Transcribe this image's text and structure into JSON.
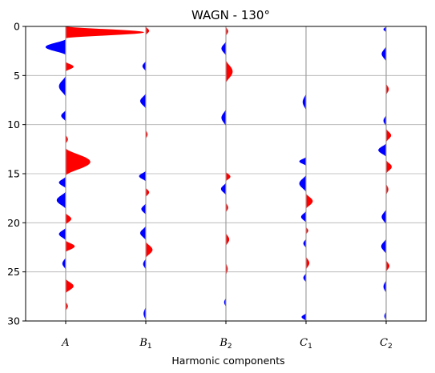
{
  "chart_data": {
    "type": "area",
    "title": "WAGN - 130°",
    "xlabel": "Harmonic components",
    "ylabel": "",
    "categories": [
      {
        "main": "A",
        "sub": ""
      },
      {
        "main": "B",
        "sub": "1"
      },
      {
        "main": "B",
        "sub": "2"
      },
      {
        "main": "C",
        "sub": "1"
      },
      {
        "main": "C",
        "sub": "2"
      }
    ],
    "ylim": [
      30,
      0
    ],
    "yticks": [
      "0",
      "5",
      "10",
      "15",
      "20",
      "25",
      "30"
    ],
    "grid": "horizontal",
    "colors": {
      "positive": "#ff0000",
      "negative": "#0000ff",
      "trace": "#a0a0a0",
      "grid": "#b0b0b0"
    },
    "series": [
      {
        "lobes": [
          [
            0,
            1.2,
            3.5
          ],
          [
            1.3,
            2.9,
            -0.9
          ],
          [
            3.6,
            4.6,
            0.35
          ],
          [
            5.0,
            7.2,
            -0.3
          ],
          [
            8.5,
            9.7,
            -0.2
          ],
          [
            11.0,
            12.0,
            0.1
          ],
          [
            12.4,
            15.2,
            1.1
          ],
          [
            15.3,
            16.5,
            -0.3
          ],
          [
            16.8,
            18.6,
            -0.4
          ],
          [
            19.0,
            20.2,
            0.25
          ],
          [
            20.5,
            21.8,
            -0.3
          ],
          [
            21.8,
            23.0,
            0.4
          ],
          [
            23.5,
            24.8,
            -0.15
          ],
          [
            25.7,
            27.2,
            0.35
          ],
          [
            28.0,
            29.0,
            0.1
          ]
        ]
      },
      {
        "lobes": [
          [
            0,
            0.9,
            0.15
          ],
          [
            3.5,
            4.6,
            -0.15
          ],
          [
            6.8,
            8.4,
            -0.25
          ],
          [
            10.5,
            11.5,
            0.08
          ],
          [
            14.7,
            15.8,
            -0.3
          ],
          [
            16.4,
            17.4,
            0.15
          ],
          [
            18.0,
            19.2,
            -0.2
          ],
          [
            20.3,
            21.8,
            -0.25
          ],
          [
            21.9,
            23.6,
            0.3
          ],
          [
            23.6,
            24.8,
            -0.12
          ],
          [
            28.5,
            30.0,
            -0.1
          ]
        ]
      },
      {
        "lobes": [
          [
            0,
            1.0,
            0.1
          ],
          [
            1.5,
            3.0,
            -0.2
          ],
          [
            3.4,
            5.8,
            0.3
          ],
          [
            8.4,
            10.2,
            -0.2
          ],
          [
            14.8,
            15.8,
            0.2
          ],
          [
            15.9,
            17.2,
            -0.22
          ],
          [
            17.9,
            19.0,
            0.1
          ],
          [
            21.0,
            22.4,
            0.15
          ],
          [
            24.0,
            25.4,
            0.08
          ],
          [
            27.6,
            28.6,
            -0.08
          ]
        ]
      },
      {
        "lobes": [
          [
            6.8,
            8.6,
            -0.15
          ],
          [
            13.3,
            14.2,
            -0.3
          ],
          [
            15.1,
            16.9,
            -0.3
          ],
          [
            17.0,
            18.6,
            0.3
          ],
          [
            18.8,
            20.0,
            -0.22
          ],
          [
            20.4,
            21.2,
            0.1
          ],
          [
            21.6,
            22.6,
            -0.12
          ],
          [
            23.4,
            24.8,
            0.15
          ],
          [
            25.1,
            26.1,
            -0.12
          ],
          [
            29.2,
            30.0,
            -0.2
          ]
        ]
      },
      {
        "lobes": [
          [
            0,
            0.6,
            -0.12
          ],
          [
            2.0,
            3.6,
            -0.2
          ],
          [
            5.8,
            7.0,
            0.12
          ],
          [
            9.0,
            10.2,
            -0.12
          ],
          [
            10.4,
            11.8,
            0.22
          ],
          [
            11.9,
            13.3,
            -0.35
          ],
          [
            13.6,
            15.0,
            0.25
          ],
          [
            16.0,
            17.2,
            0.1
          ],
          [
            18.6,
            20.2,
            -0.2
          ],
          [
            21.6,
            23.2,
            -0.22
          ],
          [
            23.8,
            25.0,
            0.15
          ],
          [
            25.8,
            27.2,
            -0.12
          ],
          [
            29.0,
            30.0,
            -0.08
          ]
        ]
      }
    ]
  }
}
